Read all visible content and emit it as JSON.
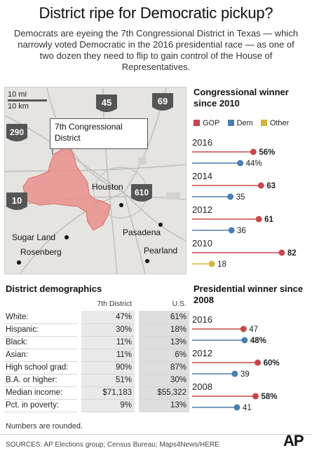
{
  "title": "District ripe for Democratic pickup?",
  "subtitle": "Democrats are eyeing the 7th Congressional District in Texas — which narrowly voted Democratic in the 2016 presidential race — as one of two dozen they need to flip to gain control of the House of Representatives.",
  "colors": {
    "gop": "#c8464b",
    "dem": "#4a7fb0",
    "other": "#d3b53a",
    "district": "#e98d89"
  },
  "map": {
    "scale_mi": "10 mi",
    "scale_km": "10 km",
    "district_label": "7th Congressional District",
    "highways": [
      "45",
      "69",
      "290",
      "610",
      "10"
    ],
    "cities": [
      "Houston",
      "Sugar Land",
      "Pasadena",
      "Rosenberg",
      "Pearland"
    ]
  },
  "congress": {
    "title": "Congressional winner since 2010",
    "legend": {
      "gop": "GOP",
      "dem": "Dem",
      "other": "Other"
    }
  },
  "presidential": {
    "title": "Presidential winner since 2008"
  },
  "demographics": {
    "title": "District demographics",
    "columns": [
      "7th District",
      "U.S."
    ],
    "rows": [
      {
        "label": "White:",
        "district": "47%",
        "us": "61%"
      },
      {
        "label": "Hispanic:",
        "district": "30%",
        "us": "18%"
      },
      {
        "label": "Black:",
        "district": "11%",
        "us": "13%"
      },
      {
        "label": "Asian:",
        "district": "11%",
        "us": "6%"
      },
      {
        "label": "High school grad:",
        "district": "90%",
        "us": "87%"
      },
      {
        "label": "B.A. or higher:",
        "district": "51%",
        "us": "30%"
      },
      {
        "label": "Median income:",
        "district": "$71,183",
        "us": "$55,322"
      },
      {
        "label": "Pct. in poverty:",
        "district": "9%",
        "us": "13%"
      }
    ]
  },
  "note": "Numbers are rounded.",
  "sources": "SOURCES: AP Elections group; Census Bureau; Maps4News/HERE",
  "logo": "AP",
  "chart_data": [
    {
      "type": "dot",
      "title": "Congressional winner since 2010",
      "categories": [
        "2016",
        "2014",
        "2012",
        "2010"
      ],
      "series": [
        {
          "name": "GOP",
          "values": [
            56,
            63,
            61,
            82
          ]
        },
        {
          "name": "Dem",
          "values": [
            44,
            35,
            36,
            null
          ]
        },
        {
          "name": "Other",
          "values": [
            null,
            null,
            null,
            18
          ]
        }
      ],
      "labels": {
        "GOP": [
          "56%",
          "63",
          "61",
          "82"
        ],
        "Dem": [
          "44%",
          "35",
          "36",
          ""
        ],
        "Other": [
          "",
          "",
          "",
          "18"
        ]
      },
      "bold_series": "GOP",
      "xlim": [
        0,
        100
      ]
    },
    {
      "type": "dot",
      "title": "Presidential winner since 2008",
      "categories": [
        "2016",
        "2012",
        "2008"
      ],
      "series": [
        {
          "name": "GOP",
          "values": [
            47,
            60,
            58
          ]
        },
        {
          "name": "Dem",
          "values": [
            48,
            39,
            41
          ]
        }
      ],
      "labels": {
        "GOP": [
          "47",
          "60%",
          "58%"
        ],
        "Dem": [
          "48%",
          "39",
          "41"
        ]
      },
      "bold": {
        "GOP": [
          false,
          true,
          true
        ],
        "Dem": [
          true,
          false,
          false
        ]
      },
      "xlim": [
        0,
        100
      ]
    }
  ]
}
